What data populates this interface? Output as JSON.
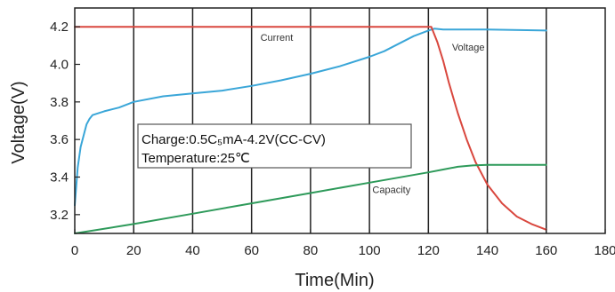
{
  "chart_data": {
    "type": "line",
    "title": "",
    "xlabel": "Time(Min)",
    "ylabel": "Voltage(V)",
    "xlim": [
      0,
      180
    ],
    "ylim": [
      3.1,
      4.3
    ],
    "x_ticks": [
      0,
      20,
      40,
      60,
      80,
      100,
      120,
      140,
      160,
      180
    ],
    "x_tick_labels": [
      "0",
      "20",
      "40",
      "60",
      "80",
      "100",
      "120",
      "140",
      "160",
      "180"
    ],
    "y_ticks": [
      3.2,
      3.4,
      3.6,
      3.8,
      4.0,
      4.2
    ],
    "y_tick_labels": [
      "3.2",
      "3.4",
      "3.6",
      "3.8",
      "4.0",
      "4.2"
    ],
    "grid": "vertical",
    "annotation": {
      "line1": "Charge:0.5C₅mA-4.2V(CC-CV)",
      "line2": "Temperature:25℃"
    },
    "series": [
      {
        "name": "Voltage",
        "color": "#3aa6d8",
        "points": [
          [
            0,
            3.25
          ],
          [
            1,
            3.45
          ],
          [
            2,
            3.56
          ],
          [
            3,
            3.62
          ],
          [
            4,
            3.68
          ],
          [
            5,
            3.71
          ],
          [
            6,
            3.73
          ],
          [
            10,
            3.75
          ],
          [
            15,
            3.77
          ],
          [
            20,
            3.8
          ],
          [
            30,
            3.83
          ],
          [
            40,
            3.845
          ],
          [
            50,
            3.86
          ],
          [
            60,
            3.885
          ],
          [
            70,
            3.915
          ],
          [
            80,
            3.95
          ],
          [
            90,
            3.99
          ],
          [
            100,
            4.04
          ],
          [
            105,
            4.07
          ],
          [
            110,
            4.11
          ],
          [
            115,
            4.15
          ],
          [
            120,
            4.18
          ],
          [
            122,
            4.19
          ],
          [
            125,
            4.185
          ],
          [
            140,
            4.185
          ],
          [
            160,
            4.18
          ]
        ]
      },
      {
        "name": "Current",
        "color": "#d9473e",
        "points": [
          [
            0,
            4.2
          ],
          [
            120,
            4.2
          ],
          [
            121,
            4.2
          ],
          [
            123,
            4.12
          ],
          [
            125,
            4.02
          ],
          [
            127,
            3.9
          ],
          [
            130,
            3.74
          ],
          [
            133,
            3.6
          ],
          [
            136,
            3.48
          ],
          [
            140,
            3.36
          ],
          [
            145,
            3.26
          ],
          [
            150,
            3.19
          ],
          [
            155,
            3.15
          ],
          [
            160,
            3.12
          ]
        ]
      },
      {
        "name": "Capacity",
        "color": "#2e9a5a",
        "points": [
          [
            0,
            3.1
          ],
          [
            20,
            3.15
          ],
          [
            40,
            3.205
          ],
          [
            60,
            3.26
          ],
          [
            80,
            3.315
          ],
          [
            100,
            3.37
          ],
          [
            120,
            3.425
          ],
          [
            125,
            3.44
          ],
          [
            130,
            3.455
          ],
          [
            135,
            3.462
          ],
          [
            140,
            3.465
          ],
          [
            160,
            3.465
          ]
        ]
      }
    ]
  }
}
